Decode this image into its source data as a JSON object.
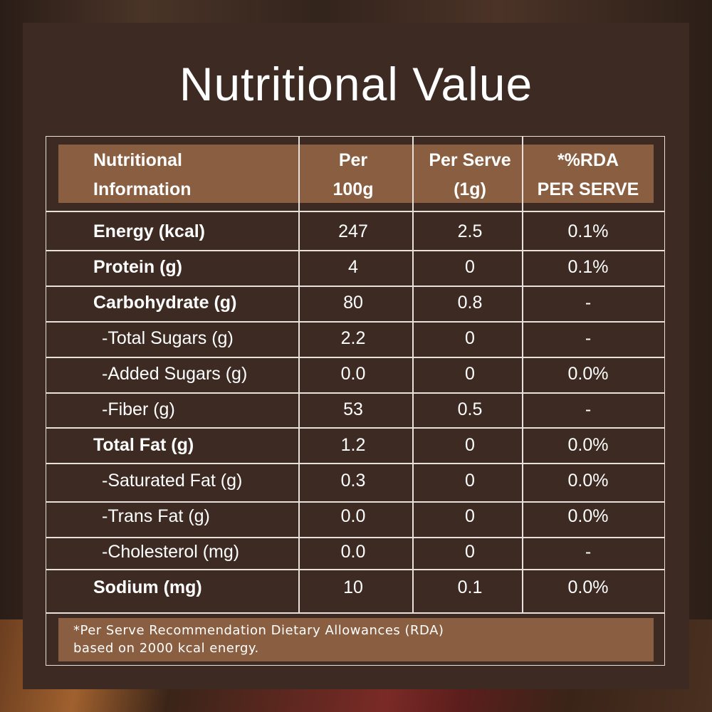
{
  "title": "Nutritional Value",
  "headers": {
    "nutrient_line1": "Nutritional",
    "nutrient_line2": "Information",
    "per100_line1": "Per",
    "per100_line2": "100g",
    "perserve_line1": "Per Serve",
    "perserve_line2": "(1g)",
    "rda_line1": "*%RDA",
    "rda_line2": "PER SERVE"
  },
  "rows": [
    {
      "name": "Energy (kcal)",
      "per100": "247",
      "serve": "2.5",
      "rda": "0.1%"
    },
    {
      "name": "Protein (g)",
      "per100": "4",
      "serve": "0",
      "rda": "0.1%"
    },
    {
      "name": "Carbohydrate (g)",
      "per100": "80",
      "serve": "0.8",
      "rda": "-"
    },
    {
      "name": "-Total Sugars (g)",
      "per100": "2.2",
      "serve": "0",
      "rda": "-"
    },
    {
      "name": "-Added Sugars (g)",
      "per100": "0.0",
      "serve": "0",
      "rda": "0.0%"
    },
    {
      "name": "-Fiber (g)",
      "per100": "53",
      "serve": "0.5",
      "rda": "-"
    },
    {
      "name": "Total Fat (g)",
      "per100": "1.2",
      "serve": "0",
      "rda": "0.0%"
    },
    {
      "name": "-Saturated Fat (g)",
      "per100": "0.3",
      "serve": "0",
      "rda": "0.0%"
    },
    {
      "name": "-Trans Fat (g)",
      "per100": "0.0",
      "serve": "0",
      "rda": "0.0%"
    },
    {
      "name": "-Cholesterol (mg)",
      "per100": "0.0",
      "serve": "0",
      "rda": "-"
    },
    {
      "name": "Sodium (mg)",
      "per100": "10",
      "serve": "0.1",
      "rda": "0.0%"
    }
  ],
  "footnote": {
    "line1": "*Per Serve Recommendation Dietary Allowances (RDA)",
    "line2": "based on 2000 kcal energy."
  },
  "colors": {
    "panel": "#3d2a22",
    "band": "#8a5e40",
    "text": "#ffffff"
  }
}
